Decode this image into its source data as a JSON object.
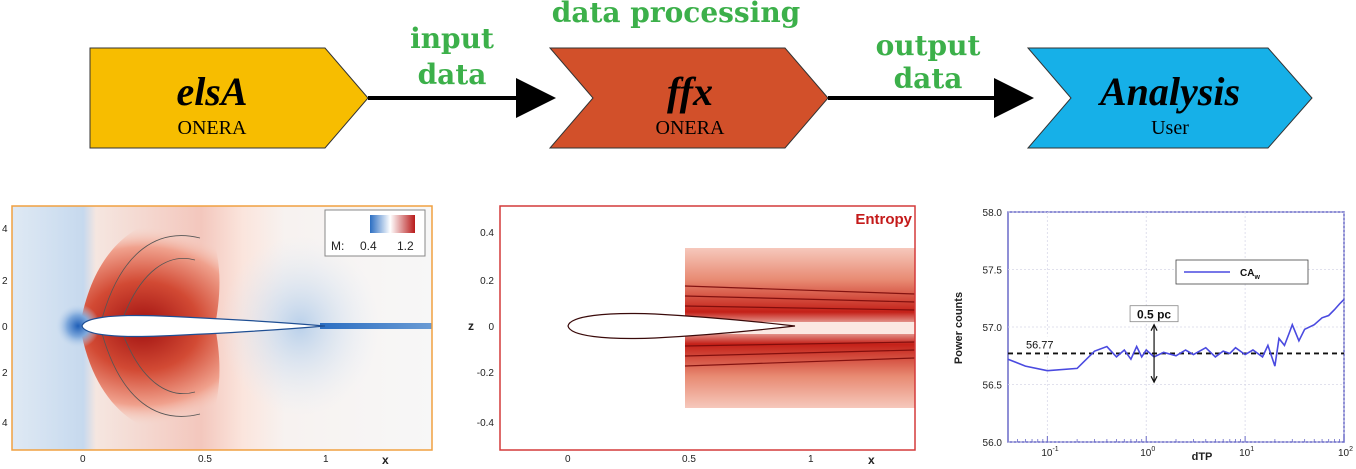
{
  "pipeline": {
    "steps": [
      {
        "title": "elsA",
        "subtitle": "ONERA",
        "color": "#f7bd00"
      },
      {
        "title": "ffx",
        "subtitle": "ONERA",
        "color": "#d2502a"
      },
      {
        "title": "Analysis",
        "subtitle": "User",
        "color": "#16b0e8"
      }
    ],
    "arrow1_label": [
      "input",
      "data"
    ],
    "arrow2_label": [
      "output",
      "data"
    ],
    "top_label": "data processing"
  },
  "panels": {
    "mach": {
      "legend_label": "M:",
      "legend_min": "0.4",
      "legend_max": "1.2",
      "x_ticks": [
        "0",
        "0.5",
        "1"
      ],
      "x_label": "x",
      "y_ticks": [
        "4",
        "2",
        "0",
        "2",
        "4"
      ],
      "colors": {
        "frame": "#f0a040",
        "low": "#2b6ec2",
        "high": "#b81a1a"
      }
    },
    "entropy": {
      "title": "Entropy",
      "x_ticks": [
        "0",
        "0.5",
        "1"
      ],
      "x_label": "x",
      "y_label": "z",
      "y_ticks": [
        "0.4",
        "0.2",
        "0",
        "-0.2",
        "-0.4"
      ],
      "colors": {
        "frame": "#d43a3a",
        "fill": "#c41a1a"
      }
    }
  },
  "chart_data": {
    "type": "line",
    "xscale": "log",
    "xlabel": "dTP",
    "ylabel": "Power counts",
    "xlim": [
      0.04,
      100
    ],
    "ylim": [
      56.0,
      58.0
    ],
    "y_ticks": [
      "58.0",
      "57.5",
      "57.0",
      "56.5",
      "56.0"
    ],
    "x_tick_base": "10",
    "x_tick_exponents": [
      "-1",
      "0",
      "1",
      "2"
    ],
    "legend": {
      "label_main": "CA",
      "label_sub": "w",
      "position": "top-right"
    },
    "reference_line": {
      "y": 56.77,
      "label": "56.77"
    },
    "annotation": {
      "label": "0.5 pc",
      "x": 1.2,
      "y_from": 56.52,
      "y_to": 57.02
    },
    "series": [
      {
        "color": "#4a4ae0",
        "x": [
          0.04,
          0.06,
          0.1,
          0.2,
          0.3,
          0.4,
          0.5,
          0.6,
          0.7,
          0.8,
          0.9,
          1.0,
          1.2,
          1.5,
          2,
          2.5,
          3,
          4,
          5,
          6,
          7,
          8,
          10,
          12,
          15,
          17,
          20,
          22,
          25,
          28,
          30,
          35,
          40,
          50,
          60,
          70,
          80,
          90,
          100
        ],
        "y": [
          56.72,
          56.66,
          56.62,
          56.64,
          56.79,
          56.83,
          56.74,
          56.8,
          56.72,
          56.83,
          56.74,
          56.8,
          56.74,
          56.78,
          56.75,
          56.8,
          56.76,
          56.82,
          56.74,
          56.79,
          56.77,
          56.82,
          56.76,
          56.8,
          56.74,
          56.84,
          56.66,
          56.9,
          56.84,
          56.95,
          57.02,
          56.88,
          56.98,
          57.02,
          57.08,
          57.1,
          57.15,
          57.2,
          57.24
        ]
      }
    ]
  }
}
